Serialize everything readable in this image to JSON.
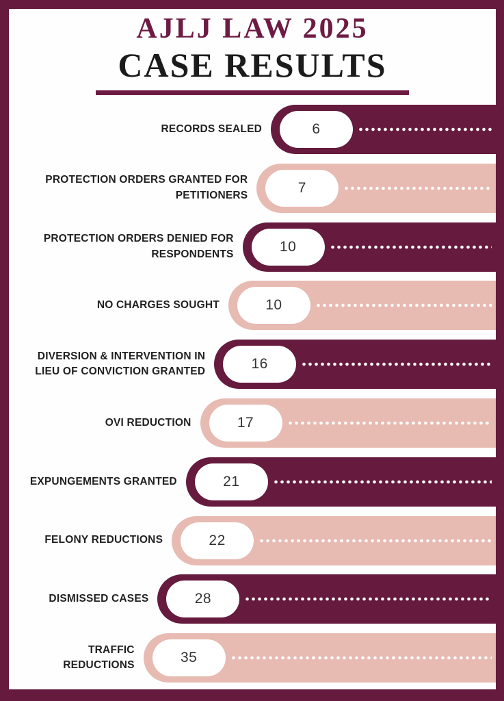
{
  "header": {
    "title_line1": "AJLJ LAW 2025",
    "title_line2": "CASE RESULTS"
  },
  "colors": {
    "maroon": "#651a3e",
    "rose": "#e7bab2",
    "title_maroon": "#6e1b44",
    "title_black": "#1b1b1b",
    "label_text": "#212121",
    "value_text": "#333333",
    "dot": "#ffffff",
    "background": "#fefefe"
  },
  "chart_data": {
    "type": "bar",
    "orientation": "horizontal",
    "title": "AJLJ LAW 2025 CASE RESULTS",
    "legend": "none",
    "grid": false,
    "categories": [
      "RECORDS SEALED",
      "PROTECTION ORDERS GRANTED FOR PETITIONERS",
      "PROTECTION ORDERS DENIED FOR RESPONDENTS",
      "NO CHARGES SOUGHT",
      "DIVERSION & INTERVENTION IN LIEU OF CONVICTION GRANTED",
      "OVI REDUCTION",
      "EXPUNGEMENTS GRANTED",
      "FELONY REDUCTIONS",
      "DISMISSED CASES",
      "TRAFFIC REDUCTIONS"
    ],
    "values": [
      6,
      7,
      10,
      10,
      16,
      17,
      21,
      22,
      28,
      35
    ],
    "rows": [
      {
        "label": "RECORDS SEALED",
        "value": "6",
        "tone": "dark"
      },
      {
        "label": "PROTECTION ORDERS GRANTED FOR\nPETITIONERS",
        "value": "7",
        "tone": "light"
      },
      {
        "label": "PROTECTION ORDERS DENIED FOR\nRESPONDENTS",
        "value": "10",
        "tone": "dark"
      },
      {
        "label": "NO CHARGES SOUGHT",
        "value": "10",
        "tone": "light"
      },
      {
        "label": "DIVERSION & INTERVENTION IN\nLIEU OF CONVICTION GRANTED",
        "value": "16",
        "tone": "dark"
      },
      {
        "label": "OVI REDUCTION",
        "value": "17",
        "tone": "light"
      },
      {
        "label": "EXPUNGEMENTS GRANTED",
        "value": "21",
        "tone": "dark"
      },
      {
        "label": "FELONY REDUCTIONS",
        "value": "22",
        "tone": "light"
      },
      {
        "label": "DISMISSED CASES",
        "value": "28",
        "tone": "dark"
      },
      {
        "label": "TRAFFIC REDUCTIONS",
        "value": "35",
        "tone": "light"
      }
    ]
  }
}
